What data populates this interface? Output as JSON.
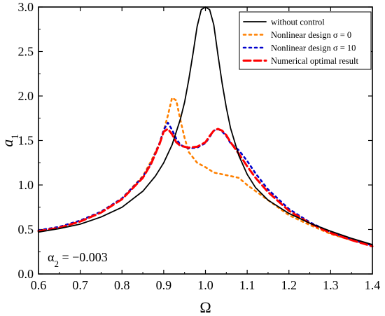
{
  "chart_data": {
    "type": "line",
    "title": "",
    "xlabel": "Ω",
    "ylabel": "a",
    "ylabel_subscript": "1",
    "xlim": [
      0.6,
      1.4
    ],
    "ylim": [
      0.0,
      3.0
    ],
    "xticks": [
      "0.6",
      "0.7",
      "0.8",
      "0.9",
      "1.0",
      "1.1",
      "1.2",
      "1.3",
      "1.4"
    ],
    "yticks": [
      "0.0",
      "0.5",
      "1.0",
      "1.5",
      "2.0",
      "2.5",
      "3.0"
    ],
    "grid": false,
    "legend_position": "top-right",
    "annotation": {
      "symbol": "α",
      "subscript": "2",
      "text": " = −0.003"
    },
    "series": [
      {
        "name": "without control",
        "color": "#000000",
        "style": "solid",
        "x": [
          0.6,
          0.65,
          0.7,
          0.75,
          0.8,
          0.85,
          0.88,
          0.9,
          0.92,
          0.94,
          0.95,
          0.96,
          0.97,
          0.98,
          0.99,
          1.0,
          1.01,
          1.02,
          1.03,
          1.04,
          1.05,
          1.06,
          1.08,
          1.1,
          1.12,
          1.15,
          1.2,
          1.25,
          1.3,
          1.35,
          1.4
        ],
        "y": [
          0.47,
          0.51,
          0.56,
          0.64,
          0.75,
          0.93,
          1.1,
          1.25,
          1.45,
          1.74,
          1.93,
          2.18,
          2.47,
          2.78,
          2.97,
          3.0,
          2.97,
          2.8,
          2.46,
          2.14,
          1.87,
          1.64,
          1.33,
          1.12,
          0.97,
          0.83,
          0.68,
          0.57,
          0.48,
          0.4,
          0.33
        ]
      },
      {
        "name": "Nonlinear design σ = 0",
        "color": "#ff8000",
        "style": "dotted",
        "x": [
          0.6,
          0.65,
          0.7,
          0.75,
          0.8,
          0.85,
          0.87,
          0.89,
          0.9,
          0.91,
          0.92,
          0.93,
          0.94,
          0.95,
          0.96,
          0.98,
          1.0,
          1.02,
          1.05,
          1.08,
          1.1,
          1.15,
          1.2,
          1.25,
          1.3,
          1.35,
          1.4
        ],
        "y": [
          0.49,
          0.53,
          0.6,
          0.7,
          0.85,
          1.1,
          1.27,
          1.47,
          1.61,
          1.78,
          1.98,
          1.95,
          1.73,
          1.53,
          1.37,
          1.25,
          1.2,
          1.14,
          1.11,
          1.08,
          1.0,
          0.83,
          0.66,
          0.55,
          0.45,
          0.38,
          0.32
        ]
      },
      {
        "name": "Nonlinear design σ = 10",
        "color": "#0000cc",
        "style": "dotted",
        "x": [
          0.6,
          0.65,
          0.7,
          0.75,
          0.8,
          0.85,
          0.87,
          0.89,
          0.9,
          0.91,
          0.92,
          0.93,
          0.94,
          0.96,
          0.98,
          1.0,
          1.01,
          1.02,
          1.03,
          1.04,
          1.05,
          1.06,
          1.08,
          1.1,
          1.12,
          1.15,
          1.2,
          1.25,
          1.3,
          1.35,
          1.4
        ],
        "y": [
          0.49,
          0.53,
          0.6,
          0.7,
          0.85,
          1.09,
          1.25,
          1.47,
          1.62,
          1.7,
          1.62,
          1.52,
          1.45,
          1.41,
          1.42,
          1.47,
          1.54,
          1.61,
          1.63,
          1.6,
          1.55,
          1.47,
          1.39,
          1.27,
          1.13,
          0.95,
          0.73,
          0.58,
          0.47,
          0.39,
          0.32
        ]
      },
      {
        "name": "Numerical optimal result",
        "color": "#ff0000",
        "style": "dashed",
        "x": [
          0.6,
          0.65,
          0.7,
          0.75,
          0.8,
          0.85,
          0.87,
          0.89,
          0.9,
          0.91,
          0.92,
          0.93,
          0.94,
          0.96,
          0.98,
          1.0,
          1.01,
          1.02,
          1.03,
          1.04,
          1.05,
          1.06,
          1.08,
          1.1,
          1.12,
          1.15,
          1.2,
          1.25,
          1.3,
          1.35,
          1.4
        ],
        "y": [
          0.48,
          0.52,
          0.59,
          0.69,
          0.84,
          1.08,
          1.24,
          1.46,
          1.6,
          1.63,
          1.57,
          1.48,
          1.44,
          1.42,
          1.43,
          1.48,
          1.55,
          1.61,
          1.63,
          1.61,
          1.56,
          1.48,
          1.35,
          1.21,
          1.08,
          0.92,
          0.71,
          0.57,
          0.46,
          0.38,
          0.31
        ]
      }
    ]
  }
}
